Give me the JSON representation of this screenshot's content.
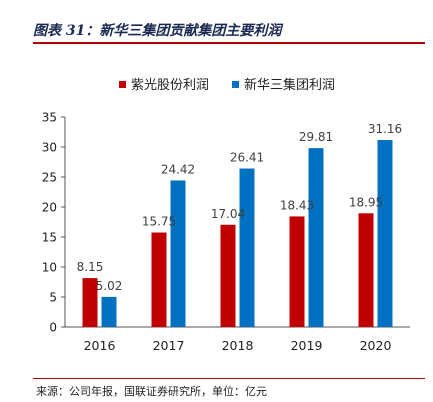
{
  "figure": {
    "title": "图表 31：新华三集团贡献集团主要利润",
    "source": "来源：公司年报，国联证券研究所，单位：亿元"
  },
  "colors": {
    "red": "#c00000",
    "blue": "#0070c0",
    "axis": "#555555"
  },
  "chart_data": {
    "type": "bar",
    "categories": [
      "2016",
      "2017",
      "2018",
      "2019",
      "2020"
    ],
    "series": [
      {
        "name": "紫光股份利润",
        "values": [
          8.15,
          15.75,
          17.04,
          18.43,
          18.95
        ]
      },
      {
        "name": "新华三集团利润",
        "values": [
          5.02,
          24.42,
          26.41,
          29.81,
          31.16
        ]
      }
    ],
    "value_labels": [
      [
        "8.15",
        "15.75",
        "17.04",
        "18.43",
        "18.95"
      ],
      [
        "5.02",
        "24.42",
        "26.41",
        "29.81",
        "31.16"
      ]
    ],
    "ylim": [
      0,
      35
    ],
    "yticks": [
      "0",
      "5",
      "10",
      "15",
      "20",
      "25",
      "30",
      "35"
    ],
    "legend_position": "top",
    "grid": false
  }
}
